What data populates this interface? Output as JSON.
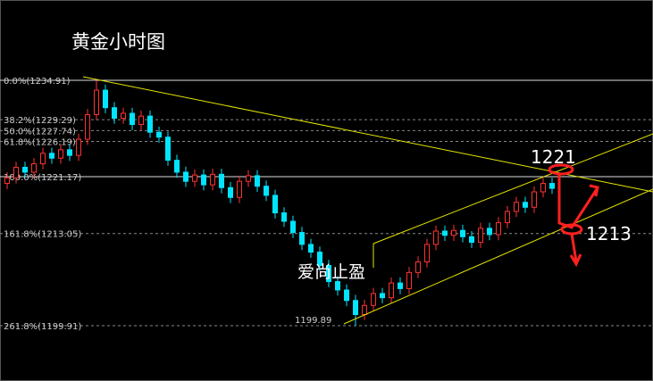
{
  "chart_data": {
    "type": "candlestick",
    "title": "黄金小时图",
    "annotations": [
      "1221",
      "1213",
      "1199.89",
      "爱尚止盈"
    ],
    "ylim": [
      1192.02,
      1246.36
    ],
    "levels": [
      {
        "value": 1234.91,
        "label": "0.0%(1234.91)",
        "style": "solid"
      },
      {
        "value": 1229.29,
        "label": "38.2%(1229.29)",
        "style": "dashed"
      },
      {
        "value": 1227.74,
        "label": "50.0%(1227.74)",
        "style": "dashed"
      },
      {
        "value": 1226.19,
        "label": "61.8%(1226.19)",
        "style": "dashed"
      },
      {
        "value": 1221.17,
        "label": "100.0%(1221.17)",
        "style": "solid"
      },
      {
        "value": 1213.05,
        "label": "161.8%(1213.05)",
        "style": "dashed"
      },
      {
        "value": 1199.91,
        "label": "261.8%(1199.91)",
        "style": "dashed"
      }
    ],
    "up_color": "#ff3232",
    "down_color": "#00e5ff",
    "open": [
      1220.2,
      1221,
      1222.5,
      1221.8,
      1223,
      1224.5,
      1223.8,
      1225,
      1224.2,
      1226.5,
      1230,
      1233.5,
      1231,
      1229.5,
      1230.2,
      1228.6,
      1229.8,
      1227.5,
      1226.8,
      1223.5,
      1221.8,
      1220.5,
      1221.4,
      1220,
      1221.5,
      1219.6,
      1218.2,
      1220.5,
      1221.3,
      1219.8,
      1218.5,
      1216,
      1214.8,
      1213.2,
      1211.5,
      1210.4,
      1208.5,
      1206.2,
      1205,
      1203.5,
      1201.5,
      1202.8,
      1204.5,
      1203.9,
      1206,
      1205.2,
      1207.5,
      1209,
      1211.5,
      1213.4,
      1212.8,
      1213.5,
      1212.6,
      1211.8,
      1213.8,
      1212.9,
      1214.6,
      1216.2,
      1217.5,
      1216.8,
      1219,
      1220.2
    ],
    "high": [
      1221.8,
      1223.3,
      1223.3,
      1223.8,
      1225.3,
      1225.3,
      1225.8,
      1225.8,
      1227.3,
      1230.8,
      1234.91,
      1234.3,
      1231.8,
      1231,
      1231,
      1230.6,
      1230.6,
      1228.3,
      1227.6,
      1224.3,
      1222.6,
      1222.2,
      1222.2,
      1222.3,
      1222.3,
      1220.4,
      1221.3,
      1222.1,
      1222.1,
      1220.6,
      1219.3,
      1216.8,
      1215.6,
      1214,
      1212.3,
      1211.2,
      1209.3,
      1207,
      1205.8,
      1204.3,
      1203.6,
      1205.3,
      1205.3,
      1206.8,
      1206.8,
      1208.3,
      1209.8,
      1212.3,
      1214.2,
      1214.2,
      1214.3,
      1214.3,
      1213.4,
      1214.6,
      1214.6,
      1215.4,
      1217,
      1218.3,
      1218.3,
      1219.8,
      1221,
      1221
    ],
    "low": [
      1219.4,
      1220.2,
      1221,
      1221,
      1222.2,
      1223,
      1223,
      1223.4,
      1223.4,
      1225.7,
      1229.2,
      1230.2,
      1228.7,
      1228.7,
      1227.8,
      1227.8,
      1226.7,
      1226,
      1222.7,
      1221,
      1219.7,
      1219.7,
      1219.2,
      1219.2,
      1218.8,
      1217.4,
      1217.4,
      1219.7,
      1219,
      1217.7,
      1215.2,
      1214,
      1212.4,
      1210.7,
      1209.6,
      1207.7,
      1205.4,
      1204.2,
      1202.7,
      1199.89,
      1200.7,
      1202,
      1203.1,
      1203.1,
      1204.4,
      1204.4,
      1206.7,
      1208.2,
      1210.7,
      1212,
      1212,
      1211.8,
      1211,
      1211,
      1212.1,
      1212.1,
      1213.8,
      1215.4,
      1216,
      1216,
      1218.2,
      1218.7
    ],
    "close": [
      1221,
      1222.5,
      1221.8,
      1223,
      1224.5,
      1223.8,
      1225,
      1224.2,
      1226.5,
      1230,
      1233.5,
      1231,
      1229.5,
      1230.2,
      1228.6,
      1229.8,
      1227.5,
      1226.8,
      1223.5,
      1221.8,
      1220.5,
      1221.4,
      1220,
      1221.5,
      1219.6,
      1218.2,
      1220.5,
      1221.3,
      1219.8,
      1218.5,
      1216,
      1214.8,
      1213.2,
      1211.5,
      1210.4,
      1208.5,
      1206.2,
      1205,
      1203.5,
      1201.5,
      1202.8,
      1204.5,
      1203.9,
      1206,
      1205.2,
      1207.5,
      1209,
      1211.5,
      1213.4,
      1212.8,
      1213.5,
      1212.6,
      1211.8,
      1213.8,
      1212.9,
      1214.6,
      1216.2,
      1217.5,
      1216.8,
      1219,
      1220.2,
      1219.5
    ]
  }
}
